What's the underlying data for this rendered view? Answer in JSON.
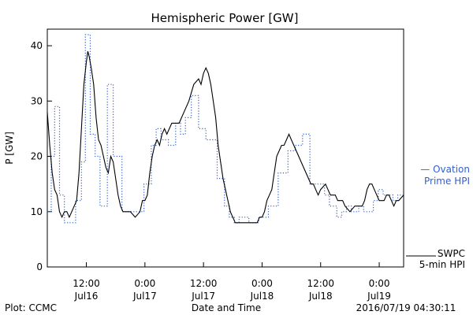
{
  "chart_data": {
    "type": "line",
    "title": "Hemispheric Power [GW]",
    "ylabel": "P [GW]",
    "xlabel": "Date and Time",
    "ylim": [
      0,
      43
    ],
    "yticks": [
      0,
      10,
      20,
      30,
      40
    ],
    "xticks": [
      {
        "time": "12:00",
        "day": "Jul16",
        "hours": 12
      },
      {
        "time": "0:00",
        "day": "Jul17",
        "hours": 24
      },
      {
        "time": "12:00",
        "day": "Jul17",
        "hours": 36
      },
      {
        "time": "0:00",
        "day": "Jul18",
        "hours": 48
      },
      {
        "time": "12:00",
        "day": "Jul18",
        "hours": 60
      },
      {
        "time": "0:00",
        "day": "Jul19",
        "hours": 72
      }
    ],
    "xlim_hours": [
      4.0,
      77.0
    ],
    "grid": false,
    "series": [
      {
        "name": "Ovation Prime HPI",
        "style": "dotted",
        "color": "#2f5fd0",
        "legend_lines": [
          "— Ovation",
          "Prime HPI"
        ],
        "x": [
          4.0,
          4.8,
          5.5,
          6.5,
          7.5,
          9.8,
          11.0,
          11.8,
          12.8,
          13.8,
          14.8,
          16.3,
          17.5,
          19.3,
          22.5,
          23.8,
          25.3,
          26.3,
          27.3,
          28.8,
          30.3,
          31.3,
          32.3,
          33.5,
          35.0,
          36.5,
          38.8,
          40.3,
          41.3,
          42.3,
          43.3,
          45.3,
          47.3,
          49.3,
          51.3,
          53.3,
          54.8,
          56.3,
          57.8,
          59.3,
          60.8,
          61.8,
          63.3,
          64.3,
          65.3,
          66.3,
          67.8,
          68.8,
          69.8,
          70.8,
          71.8,
          72.8,
          73.8,
          74.8,
          75.8,
          77.0
        ],
        "y": [
          10,
          20,
          29,
          13,
          8,
          12,
          19,
          42,
          24,
          20,
          11,
          33,
          20,
          10,
          10,
          15,
          22,
          25,
          23,
          22,
          26,
          24,
          27,
          31,
          25,
          23,
          16,
          11,
          9,
          8,
          9,
          8,
          9,
          11,
          17,
          21,
          22,
          24,
          15,
          15,
          13,
          11,
          9,
          10,
          11,
          10,
          11,
          10,
          10,
          12,
          14,
          13,
          13,
          12,
          13,
          13
        ]
      },
      {
        "name": "SWPC 5-min HPI",
        "style": "solid",
        "color": "#000000",
        "legend_lines": [
          "SWPC",
          "5-min HPI"
        ],
        "x": [
          4.0,
          4.5,
          5.0,
          5.5,
          6.0,
          6.5,
          7.0,
          7.5,
          8.0,
          8.5,
          9.0,
          9.5,
          10.0,
          10.5,
          11.0,
          11.5,
          12.0,
          12.3,
          12.6,
          13.0,
          13.5,
          14.0,
          14.5,
          15.0,
          15.5,
          16.0,
          16.5,
          17.0,
          17.5,
          18.0,
          18.5,
          19.0,
          19.5,
          20.0,
          21.0,
          22.0,
          23.0,
          23.5,
          24.0,
          24.5,
          25.0,
          25.5,
          26.0,
          26.5,
          27.0,
          27.5,
          28.0,
          28.5,
          29.0,
          29.5,
          30.0,
          31.0,
          32.0,
          33.0,
          34.0,
          35.0,
          35.5,
          36.0,
          36.5,
          37.0,
          37.5,
          38.0,
          38.5,
          39.0,
          39.5,
          40.0,
          40.5,
          41.0,
          41.5,
          42.0,
          42.5,
          43.0,
          44.0,
          45.0,
          46.0,
          47.0,
          47.5,
          48.0,
          48.5,
          49.0,
          49.5,
          50.0,
          50.5,
          51.0,
          51.5,
          52.0,
          52.5,
          53.0,
          53.5,
          54.0,
          54.5,
          55.0,
          55.5,
          56.0,
          56.5,
          57.0,
          57.5,
          58.0,
          58.5,
          59.0,
          59.5,
          60.0,
          61.0,
          62.0,
          63.0,
          63.5,
          64.0,
          64.5,
          65.0,
          66.0,
          67.0,
          68.0,
          68.5,
          69.0,
          69.5,
          70.0,
          70.5,
          71.0,
          71.5,
          72.0,
          72.5,
          73.0,
          73.5,
          74.0,
          74.5,
          75.0,
          75.5,
          76.0,
          77.0
        ],
        "y": [
          28,
          22,
          17,
          14,
          13,
          10,
          9,
          10,
          10,
          9,
          10,
          11,
          12,
          17,
          25,
          33,
          37,
          39,
          38,
          36,
          33,
          27,
          23,
          22,
          20,
          18,
          17,
          20,
          19,
          16,
          13,
          11,
          10,
          10,
          10,
          9,
          10,
          12,
          12,
          13,
          17,
          20,
          22,
          23,
          22,
          24,
          25,
          24,
          25,
          26,
          26,
          26,
          28,
          30,
          33,
          34,
          33,
          35,
          36,
          35,
          33,
          30,
          27,
          22,
          19,
          16,
          14,
          12,
          10,
          9,
          8,
          8,
          8,
          8,
          8,
          8,
          9,
          9,
          10,
          12,
          13,
          14,
          17,
          20,
          21,
          22,
          22,
          23,
          24,
          23,
          22,
          21,
          20,
          19,
          18,
          17,
          16,
          15,
          15,
          14,
          13,
          14,
          15,
          13,
          13,
          12,
          12,
          12,
          11,
          10,
          11,
          11,
          11,
          12,
          14,
          15,
          15,
          14,
          13,
          12,
          12,
          12,
          13,
          13,
          12,
          11,
          12,
          12,
          13
        ]
      }
    ]
  },
  "footer": {
    "left": "Plot: CCMC",
    "center": "Date and Time",
    "right": "2016/07/19 04:30:11"
  }
}
